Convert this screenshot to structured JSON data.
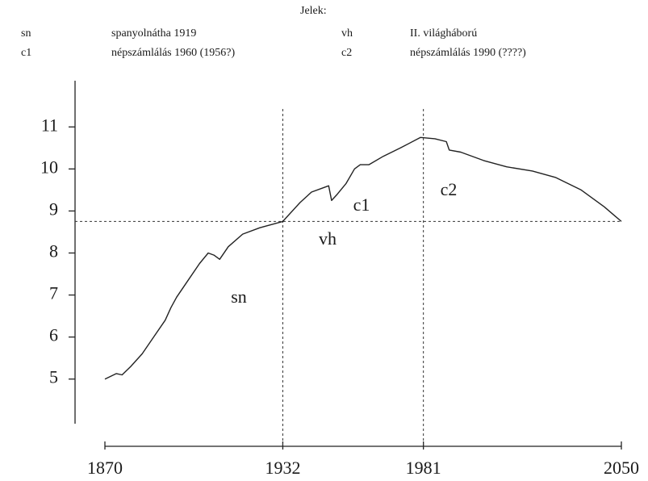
{
  "chart_data": {
    "type": "line",
    "legend_title": "Jelek:",
    "key": [
      {
        "code": "sn",
        "text": "spanyolnátha 1919"
      },
      {
        "code": "vh",
        "text": "II. világháború"
      },
      {
        "code": "c1",
        "text": "népszámlálás 1960 (1956?)"
      },
      {
        "code": "c2",
        "text": "népszámlálás 1990 (????)"
      }
    ],
    "annotations": [
      "sn",
      "vh",
      "c1",
      "c2"
    ],
    "x": [
      1870,
      1874,
      1876,
      1879,
      1883,
      1887,
      1891,
      1893,
      1895,
      1899,
      1903,
      1906,
      1908,
      1910,
      1913,
      1918,
      1924,
      1932,
      1938,
      1942,
      1946,
      1948,
      1949,
      1951,
      1954,
      1957,
      1959,
      1962,
      1967,
      1973,
      1980,
      1985,
      1989,
      1990,
      1994,
      2002,
      2010,
      2019,
      2027,
      2036,
      2044,
      2050
    ],
    "series": [
      {
        "color": "#222222",
        "values": [
          5.0,
          5.13,
          5.1,
          5.3,
          5.6,
          6.0,
          6.4,
          6.7,
          6.95,
          7.35,
          7.75,
          8.0,
          7.95,
          7.85,
          8.15,
          8.45,
          8.6,
          8.75,
          9.2,
          9.45,
          9.55,
          9.6,
          9.25,
          9.4,
          9.65,
          10.0,
          10.1,
          10.1,
          10.3,
          10.5,
          10.75,
          10.72,
          10.65,
          10.45,
          10.4,
          10.2,
          10.05,
          9.95,
          9.8,
          9.5,
          9.1,
          8.75
        ]
      }
    ],
    "xlim": [
      1870,
      2050
    ],
    "xticks": [
      1870,
      1932,
      1981,
      2050
    ],
    "ylim": [
      3.4,
      12.1
    ],
    "yticks": [
      5,
      6,
      7,
      8,
      9,
      10,
      11
    ],
    "reference_lines": {
      "x": [
        1932,
        1981
      ],
      "y": [
        8.75
      ]
    }
  }
}
